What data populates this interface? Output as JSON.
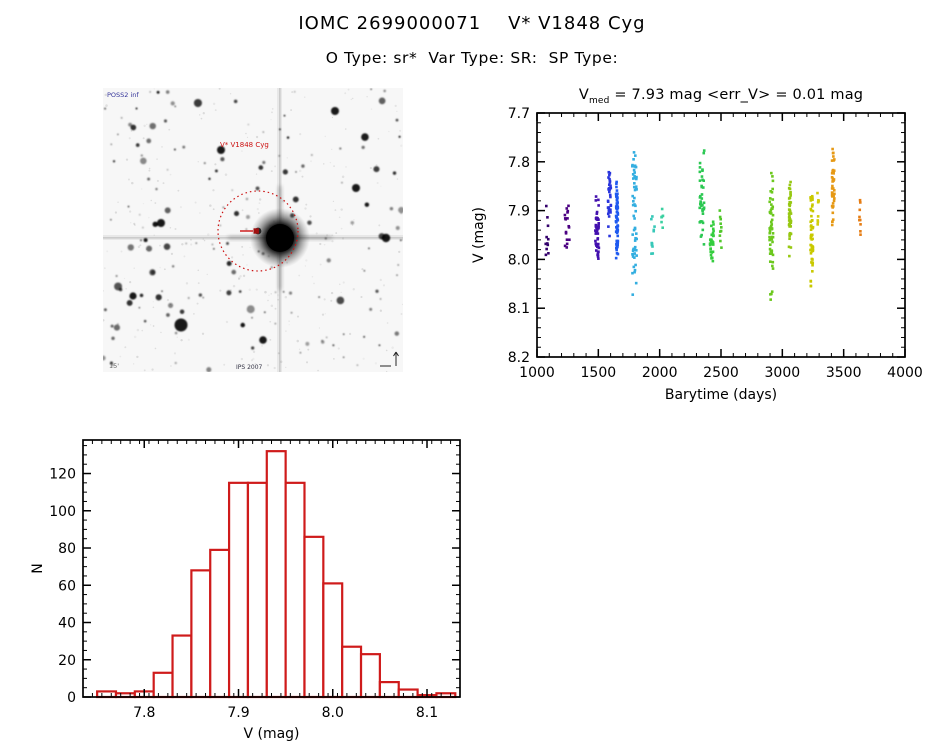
{
  "header": {
    "title": "IOMC 2699000071    V* V1848 Cyg",
    "subtitle": "O Type: sr*  Var Type: SR:  SP Type:"
  },
  "finder": {
    "survey_label": "POSS2 inf",
    "target_label": "V* V1848 Cyg",
    "bottom_label": "IPS 2007",
    "scale_label": "15'",
    "annotation_color": "#cc1111",
    "survey_label_color": "#333399",
    "background": "#f7f7f7"
  },
  "chart_data": [
    {
      "id": "lightcurve",
      "type": "scatter",
      "title_prefix": "V",
      "title_sub": "med",
      "title_rest": " = 7.93 mag <err_V> = 0.01 mag",
      "xlabel": "Barytime (days)",
      "ylabel": "V (mag)",
      "xlim": [
        1000,
        4000
      ],
      "ylim": [
        8.2,
        7.7
      ],
      "y_axis_inverted": true,
      "grid": false,
      "x_major_ticks": [
        1000,
        1500,
        2000,
        2500,
        3000,
        3500,
        4000
      ],
      "x_tick_labels": [
        "1000",
        "1500",
        "2000",
        "2500",
        "3000",
        "3500",
        "4000"
      ],
      "x_minor_step": 100,
      "y_major_ticks": [
        7.7,
        7.8,
        7.9,
        8.0,
        8.1,
        8.2
      ],
      "y_tick_labels": [
        "7.7",
        "7.8",
        "7.9",
        "8.0",
        "8.1",
        "8.2"
      ],
      "y_minor_step": 0.02,
      "series_note": "observing epochs colour-coded by time (rainbow)",
      "clusters": [
        {
          "t": 1085,
          "t_spread": 28,
          "v_min": 7.88,
          "v_max": 8.01,
          "v_peak": 7.95,
          "n": 11,
          "color": "#33006b"
        },
        {
          "t": 1245,
          "t_spread": 38,
          "v_min": 7.84,
          "v_max": 7.99,
          "v_peak": 7.92,
          "n": 17,
          "color": "#4b0082"
        },
        {
          "t": 1490,
          "t_spread": 30,
          "v_min": 7.85,
          "v_max": 8.0,
          "v_peak": 7.95,
          "n": 48,
          "color": "#4310ae"
        },
        {
          "t": 1590,
          "t_spread": 26,
          "v_min": 7.82,
          "v_max": 7.96,
          "v_peak": 7.88,
          "n": 34,
          "color": "#2a35dc"
        },
        {
          "t": 1652,
          "t_spread": 16,
          "v_min": 7.83,
          "v_max": 8.01,
          "v_peak": 7.92,
          "n": 70,
          "color": "#1f5af0"
        },
        {
          "t": 1795,
          "t_spread": 36,
          "v_min": 7.78,
          "v_max": 8.11,
          "v_peak": 7.9,
          "n": 62,
          "color": "#33aee0"
        },
        {
          "t": 1945,
          "t_spread": 28,
          "v_min": 7.9,
          "v_max": 8.02,
          "v_peak": 7.96,
          "n": 11,
          "color": "#37c8b8"
        },
        {
          "t": 2022,
          "t_spread": 14,
          "v_min": 7.88,
          "v_max": 7.94,
          "v_peak": 7.91,
          "n": 6,
          "color": "#3bd0a0"
        },
        {
          "t": 2345,
          "t_spread": 38,
          "v_min": 7.76,
          "v_max": 7.97,
          "v_peak": 7.88,
          "n": 40,
          "color": "#2bc852"
        },
        {
          "t": 2425,
          "t_spread": 30,
          "v_min": 7.92,
          "v_max": 8.03,
          "v_peak": 7.97,
          "n": 30,
          "color": "#35cd3f"
        },
        {
          "t": 2498,
          "t_spread": 18,
          "v_min": 7.89,
          "v_max": 8.01,
          "v_peak": 7.95,
          "n": 10,
          "color": "#52c82b"
        },
        {
          "t": 2910,
          "t_spread": 30,
          "v_min": 7.8,
          "v_max": 8.09,
          "v_peak": 7.94,
          "n": 55,
          "color": "#6cc81e"
        },
        {
          "t": 3063,
          "t_spread": 18,
          "v_min": 7.83,
          "v_max": 8.0,
          "v_peak": 7.91,
          "n": 45,
          "color": "#97c812"
        },
        {
          "t": 3240,
          "t_spread": 22,
          "v_min": 7.87,
          "v_max": 8.07,
          "v_peak": 7.95,
          "n": 55,
          "color": "#c9c900"
        },
        {
          "t": 3292,
          "t_spread": 12,
          "v_min": 7.84,
          "v_max": 7.93,
          "v_peak": 7.89,
          "n": 8,
          "color": "#d2cd0c"
        },
        {
          "t": 3415,
          "t_spread": 20,
          "v_min": 7.75,
          "v_max": 7.93,
          "v_peak": 7.85,
          "n": 42,
          "color": "#e69915"
        },
        {
          "t": 3632,
          "t_spread": 14,
          "v_min": 7.87,
          "v_max": 7.98,
          "v_peak": 7.93,
          "n": 9,
          "color": "#e67d14"
        }
      ]
    },
    {
      "id": "histogram",
      "type": "bar",
      "title": "",
      "xlabel": "V (mag)",
      "ylabel": "N",
      "bin_start": 7.75,
      "bin_width": 0.02,
      "bin_edges": [
        7.75,
        7.77,
        7.79,
        7.81,
        7.83,
        7.85,
        7.87,
        7.89,
        7.91,
        7.93,
        7.95,
        7.97,
        7.99,
        8.01,
        8.03,
        8.05,
        8.07,
        8.09,
        8.11,
        8.13
      ],
      "values": [
        3,
        2,
        3,
        13,
        33,
        68,
        79,
        115,
        115,
        132,
        115,
        86,
        61,
        27,
        23,
        8,
        4,
        1,
        2
      ],
      "xlim": [
        7.735,
        8.135
      ],
      "ylim": [
        0,
        138
      ],
      "x_major_ticks": [
        7.8,
        7.9,
        8.0,
        8.1
      ],
      "x_tick_labels": [
        "7.8",
        "7.9",
        "8.0",
        "8.1"
      ],
      "x_minor_step": 0.01,
      "y_major_ticks": [
        0,
        20,
        40,
        60,
        80,
        100,
        120
      ],
      "y_tick_labels": [
        "0",
        "20",
        "40",
        "60",
        "80",
        "100",
        "120"
      ],
      "y_minor_step": 5,
      "bar_color": "#cf1b1b",
      "bar_fill": "#ffffff",
      "grid": false
    }
  ]
}
